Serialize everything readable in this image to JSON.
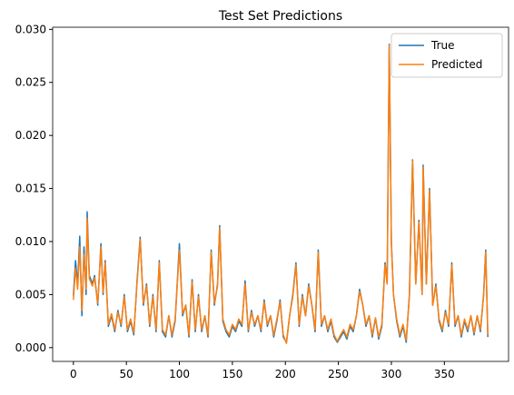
{
  "chart_data": {
    "type": "line",
    "title": "Test Set Predictions",
    "x": [
      0,
      2,
      4,
      6,
      8,
      10,
      12,
      13,
      15,
      18,
      20,
      23,
      26,
      28,
      30,
      33,
      36,
      39,
      42,
      45,
      48,
      51,
      54,
      57,
      60,
      63,
      66,
      69,
      72,
      75,
      78,
      81,
      84,
      87,
      90,
      93,
      96,
      100,
      103,
      106,
      109,
      112,
      115,
      118,
      121,
      124,
      127,
      130,
      133,
      136,
      138,
      141,
      144,
      147,
      150,
      153,
      156,
      159,
      162,
      165,
      168,
      171,
      174,
      177,
      180,
      183,
      186,
      189,
      192,
      195,
      198,
      201,
      204,
      207,
      210,
      213,
      216,
      219,
      222,
      225,
      228,
      231,
      234,
      237,
      240,
      243,
      246,
      249,
      252,
      255,
      258,
      261,
      264,
      267,
      270,
      273,
      276,
      279,
      282,
      285,
      288,
      291,
      294,
      296,
      298,
      300,
      302,
      305,
      308,
      311,
      314,
      317,
      320,
      323,
      326,
      329,
      330,
      333,
      336,
      339,
      342,
      345,
      348,
      351,
      354,
      357,
      360,
      363,
      366,
      369,
      372,
      375,
      378,
      381,
      384,
      387,
      389,
      391
    ],
    "series": [
      {
        "name": "True",
        "color": "#1f77b4",
        "values": [
          0.0049,
          0.0082,
          0.006,
          0.0105,
          0.003,
          0.0095,
          0.005,
          0.0128,
          0.0068,
          0.006,
          0.0068,
          0.004,
          0.0098,
          0.005,
          0.0082,
          0.002,
          0.003,
          0.0015,
          0.0035,
          0.002,
          0.005,
          0.0015,
          0.0025,
          0.0012,
          0.0062,
          0.0104,
          0.004,
          0.006,
          0.002,
          0.005,
          0.0015,
          0.0082,
          0.0015,
          0.001,
          0.003,
          0.001,
          0.0025,
          0.0098,
          0.003,
          0.004,
          0.001,
          0.0064,
          0.0015,
          0.005,
          0.0015,
          0.003,
          0.001,
          0.0092,
          0.004,
          0.006,
          0.0115,
          0.0025,
          0.0015,
          0.001,
          0.002,
          0.0015,
          0.0025,
          0.002,
          0.0063,
          0.0015,
          0.0035,
          0.002,
          0.003,
          0.0015,
          0.0045,
          0.002,
          0.003,
          0.001,
          0.0025,
          0.0045,
          0.001,
          0.0005,
          0.003,
          0.005,
          0.008,
          0.002,
          0.005,
          0.003,
          0.006,
          0.004,
          0.0015,
          0.0092,
          0.002,
          0.003,
          0.0015,
          0.0025,
          0.001,
          0.0005,
          0.001,
          0.0015,
          0.0008,
          0.002,
          0.0015,
          0.003,
          0.0055,
          0.004,
          0.002,
          0.003,
          0.001,
          0.0028,
          0.0008,
          0.002,
          0.008,
          0.006,
          0.0286,
          0.01,
          0.005,
          0.0025,
          0.001,
          0.002,
          0.0005,
          0.005,
          0.0177,
          0.006,
          0.012,
          0.005,
          0.0172,
          0.006,
          0.015,
          0.004,
          0.006,
          0.0025,
          0.0015,
          0.0035,
          0.002,
          0.008,
          0.002,
          0.003,
          0.001,
          0.0025,
          0.0015,
          0.003,
          0.0012,
          0.003,
          0.0015,
          0.005,
          0.0092,
          0.001
        ]
      },
      {
        "name": "Predicted",
        "color": "#ff7f0e",
        "values": [
          0.0045,
          0.0075,
          0.0055,
          0.0095,
          0.0035,
          0.0088,
          0.0055,
          0.0122,
          0.0065,
          0.0058,
          0.0066,
          0.0042,
          0.0095,
          0.0052,
          0.008,
          0.0022,
          0.0032,
          0.0017,
          0.0033,
          0.0022,
          0.0048,
          0.0017,
          0.0027,
          0.0014,
          0.006,
          0.0102,
          0.0042,
          0.0058,
          0.0022,
          0.0048,
          0.0017,
          0.008,
          0.0017,
          0.0012,
          0.003,
          0.0012,
          0.0027,
          0.0092,
          0.0032,
          0.004,
          0.0012,
          0.0062,
          0.0017,
          0.0048,
          0.0017,
          0.003,
          0.0012,
          0.009,
          0.0042,
          0.0058,
          0.0113,
          0.0027,
          0.0017,
          0.0012,
          0.0022,
          0.0017,
          0.0027,
          0.0022,
          0.006,
          0.0017,
          0.0033,
          0.0022,
          0.003,
          0.0017,
          0.0043,
          0.0022,
          0.003,
          0.0012,
          0.0027,
          0.0043,
          0.0012,
          0.0004,
          0.003,
          0.0048,
          0.0078,
          0.0022,
          0.0048,
          0.003,
          0.0058,
          0.004,
          0.0017,
          0.009,
          0.0022,
          0.003,
          0.0017,
          0.0027,
          0.0012,
          0.0006,
          0.0012,
          0.0017,
          0.001,
          0.0022,
          0.0017,
          0.003,
          0.0053,
          0.004,
          0.0022,
          0.003,
          0.0012,
          0.0028,
          0.001,
          0.0022,
          0.0078,
          0.006,
          0.0285,
          0.0098,
          0.005,
          0.0027,
          0.0012,
          0.0022,
          0.0007,
          0.0048,
          0.0176,
          0.006,
          0.0118,
          0.005,
          0.017,
          0.006,
          0.0148,
          0.004,
          0.0058,
          0.0027,
          0.0017,
          0.0033,
          0.0022,
          0.0078,
          0.0022,
          0.003,
          0.0012,
          0.0027,
          0.0017,
          0.003,
          0.0014,
          0.003,
          0.0017,
          0.0048,
          0.009,
          0.0012
        ]
      }
    ],
    "xlim": [
      -19.55,
      410.55
    ],
    "xticks": [
      0,
      50,
      100,
      150,
      200,
      250,
      300,
      350
    ],
    "ylim": [
      -0.0013,
      0.0302
    ],
    "yticks": [
      {
        "value": 0,
        "label": "0.000"
      },
      {
        "value": 0.005,
        "label": "0.005"
      },
      {
        "value": 0.01,
        "label": "0.010"
      },
      {
        "value": 0.015,
        "label": "0.015"
      },
      {
        "value": 0.02,
        "label": "0.020"
      },
      {
        "value": 0.025,
        "label": "0.025"
      },
      {
        "value": 0.03,
        "label": "0.030"
      }
    ],
    "legend": "upper right",
    "grid": false
  }
}
